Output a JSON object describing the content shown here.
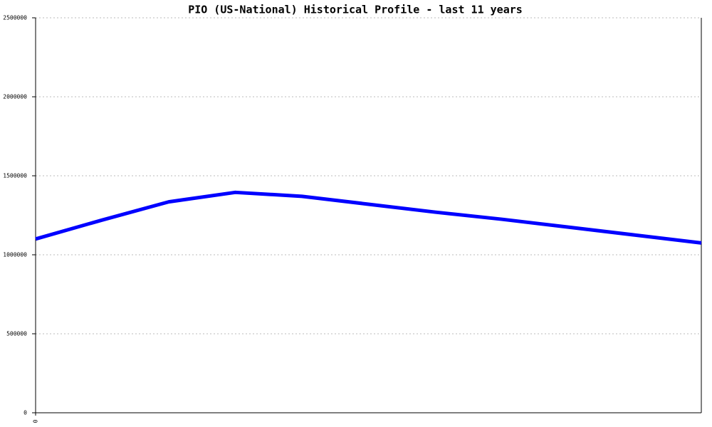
{
  "chart_data": {
    "type": "line",
    "title": "PIO (US-National) Historical Profile - last 11 years",
    "categories": [
      "0",
      null,
      null,
      null,
      null,
      null,
      null,
      null,
      null,
      null,
      null
    ],
    "series": [
      {
        "name": "PIO",
        "color": "#0000ff",
        "values": [
          1100000,
          1220000,
          1335000,
          1395000,
          1370000,
          1320000,
          1270000,
          1225000,
          1175000,
          1125000,
          1075000
        ]
      }
    ],
    "ylim": [
      0,
      2500000
    ],
    "yticks": [
      0,
      500000,
      1000000,
      1500000,
      2000000,
      2500000
    ],
    "grid": true
  }
}
